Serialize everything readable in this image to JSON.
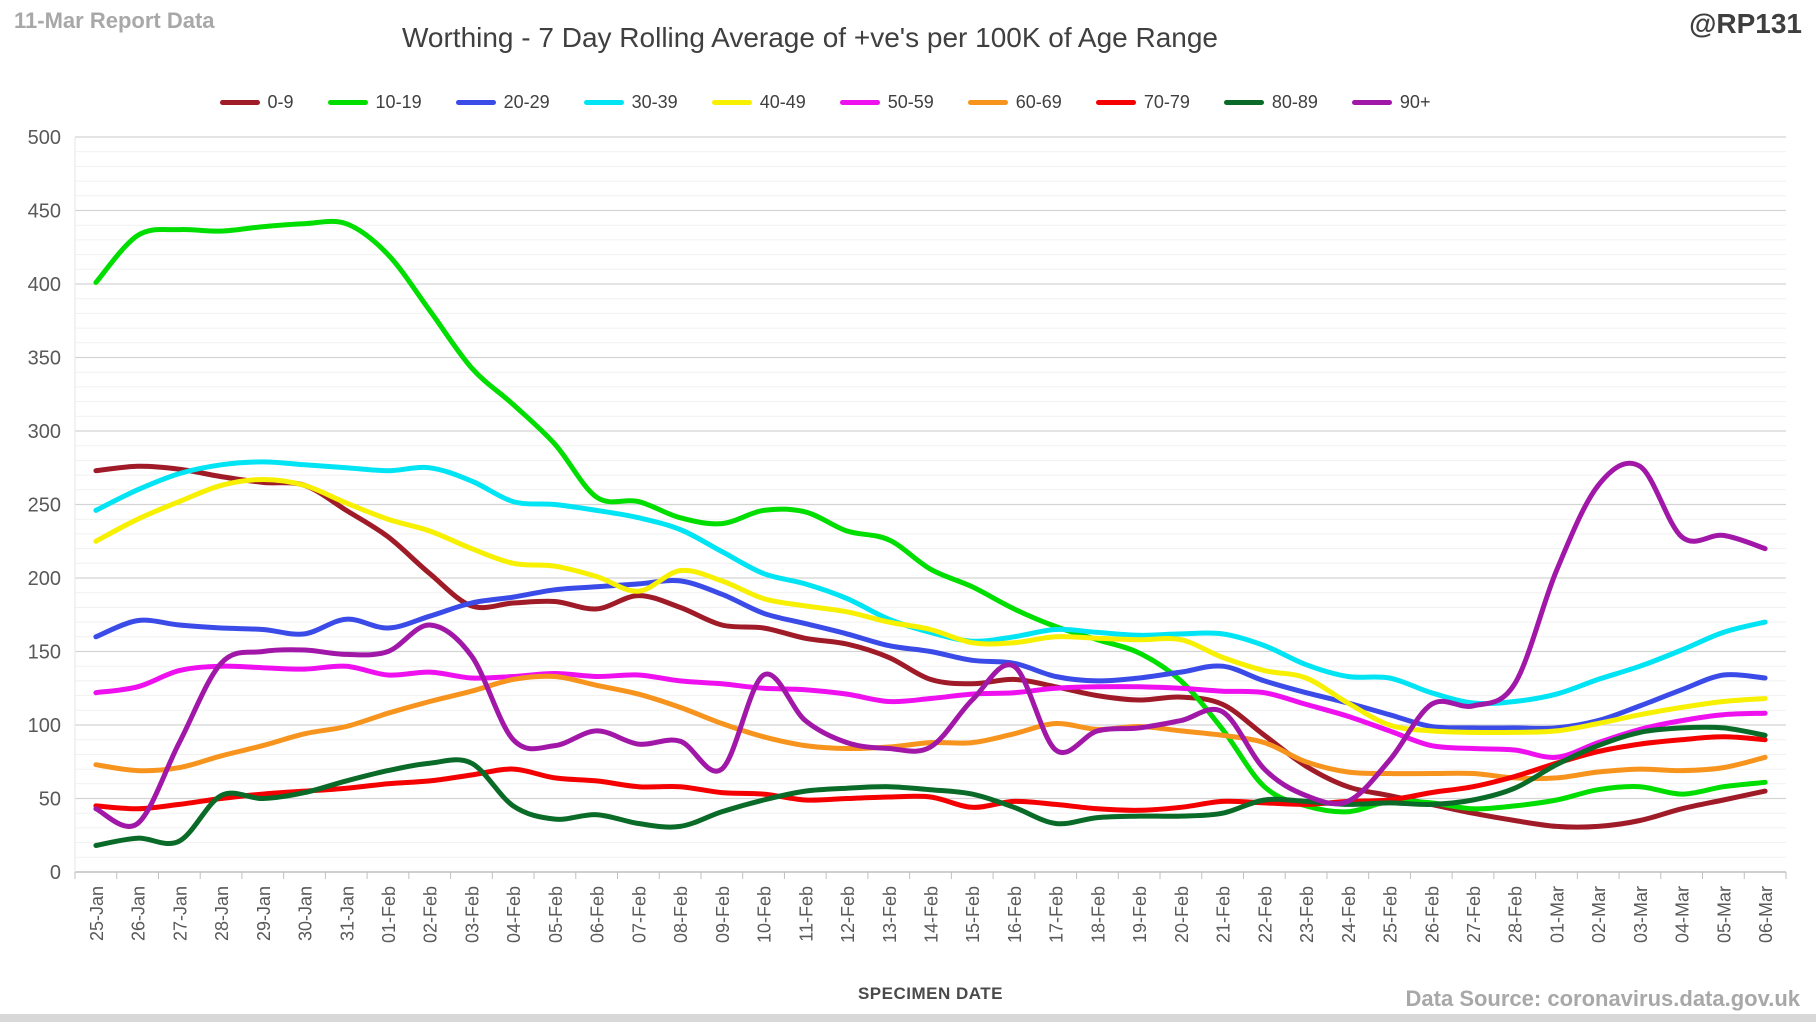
{
  "header": {
    "report_label": "11-Mar Report Data",
    "title": "Worthing - 7 Day Rolling Average of +ve's per 100K of Age Range",
    "handle": "@RP131"
  },
  "footer": {
    "xaxis_title": "SPECIMEN DATE",
    "source": "Data Source: coronavirus.data.gov.uk"
  },
  "style": {
    "background": "#ffffff",
    "major_grid": "#d4d4d4",
    "minor_grid": "#f1f1f1",
    "axis_line": "#bfbfbf",
    "tick_label": "#595959",
    "line_width": 5
  },
  "chart_data": {
    "type": "line",
    "title": "Worthing - 7 Day Rolling Average of +ve's per 100K of Age Range",
    "xlabel": "SPECIMEN DATE",
    "ylabel": "",
    "ylim": [
      0,
      500
    ],
    "ytick_step": 50,
    "minor_step": 10,
    "grid": true,
    "legend_position": "top",
    "yticks": [
      0,
      50,
      100,
      150,
      200,
      250,
      300,
      350,
      400,
      450,
      500
    ],
    "x": [
      "25-Jan",
      "26-Jan",
      "27-Jan",
      "28-Jan",
      "29-Jan",
      "30-Jan",
      "31-Jan",
      "01-Feb",
      "02-Feb",
      "03-Feb",
      "04-Feb",
      "05-Feb",
      "06-Feb",
      "07-Feb",
      "08-Feb",
      "09-Feb",
      "10-Feb",
      "11-Feb",
      "12-Feb",
      "13-Feb",
      "14-Feb",
      "15-Feb",
      "16-Feb",
      "17-Feb",
      "18-Feb",
      "19-Feb",
      "20-Feb",
      "21-Feb",
      "22-Feb",
      "23-Feb",
      "24-Feb",
      "25-Feb",
      "26-Feb",
      "27-Feb",
      "28-Feb",
      "01-Mar",
      "02-Mar",
      "03-Mar",
      "04-Mar",
      "05-Mar",
      "06-Mar"
    ],
    "series": [
      {
        "name": "0-9",
        "color": "#a01b28",
        "values": [
          273,
          276,
          274,
          269,
          265,
          263,
          246,
          228,
          203,
          181,
          183,
          184,
          179,
          188,
          180,
          168,
          166,
          159,
          155,
          146,
          131,
          128,
          131,
          126,
          120,
          117,
          119,
          114,
          93,
          72,
          58,
          52,
          46,
          40,
          35,
          31,
          31,
          35,
          43,
          49,
          55
        ]
      },
      {
        "name": "10-19",
        "color": "#00de00",
        "values": [
          401,
          433,
          437,
          436,
          439,
          441,
          441,
          420,
          382,
          343,
          318,
          291,
          255,
          252,
          241,
          237,
          246,
          245,
          232,
          226,
          206,
          194,
          179,
          167,
          158,
          149,
          130,
          97,
          58,
          45,
          41,
          48,
          47,
          43,
          45,
          49,
          56,
          58,
          53,
          58,
          61
        ]
      },
      {
        "name": "20-29",
        "color": "#3b4be8",
        "values": [
          160,
          171,
          168,
          166,
          165,
          162,
          172,
          166,
          174,
          183,
          187,
          192,
          194,
          196,
          198,
          189,
          176,
          169,
          162,
          154,
          150,
          144,
          142,
          133,
          130,
          132,
          136,
          140,
          130,
          122,
          115,
          107,
          99,
          98,
          98,
          98,
          103,
          113,
          124,
          134,
          132
        ]
      },
      {
        "name": "30-39",
        "color": "#00e4f4",
        "values": [
          246,
          260,
          271,
          277,
          279,
          277,
          275,
          273,
          275,
          266,
          252,
          250,
          246,
          241,
          233,
          218,
          203,
          196,
          186,
          172,
          163,
          157,
          160,
          165,
          163,
          161,
          162,
          162,
          154,
          141,
          133,
          132,
          122,
          115,
          116,
          121,
          131,
          140,
          151,
          163,
          170
        ]
      },
      {
        "name": "40-49",
        "color": "#f7f000",
        "values": [
          225,
          240,
          252,
          263,
          267,
          263,
          251,
          240,
          232,
          220,
          210,
          208,
          201,
          191,
          205,
          198,
          186,
          181,
          177,
          170,
          165,
          156,
          156,
          160,
          159,
          158,
          158,
          146,
          137,
          132,
          115,
          100,
          96,
          95,
          95,
          96,
          101,
          107,
          112,
          116,
          118
        ]
      },
      {
        "name": "50-59",
        "color": "#ee10ee",
        "values": [
          122,
          126,
          137,
          140,
          139,
          138,
          140,
          134,
          136,
          132,
          133,
          135,
          133,
          134,
          130,
          128,
          125,
          124,
          121,
          116,
          118,
          121,
          122,
          125,
          126,
          126,
          125,
          123,
          122,
          114,
          106,
          96,
          86,
          84,
          83,
          78,
          88,
          97,
          103,
          107,
          108
        ]
      },
      {
        "name": "60-69",
        "color": "#f7941e",
        "values": [
          73,
          69,
          71,
          79,
          86,
          94,
          99,
          108,
          116,
          123,
          131,
          133,
          127,
          121,
          112,
          101,
          92,
          86,
          84,
          85,
          88,
          88,
          94,
          101,
          97,
          99,
          96,
          93,
          88,
          75,
          68,
          67,
          67,
          67,
          64,
          64,
          68,
          70,
          69,
          71,
          78
        ]
      },
      {
        "name": "70-79",
        "color": "#f40000",
        "values": [
          45,
          43,
          46,
          50,
          53,
          55,
          57,
          60,
          62,
          66,
          70,
          64,
          62,
          58,
          58,
          54,
          53,
          49,
          50,
          51,
          51,
          44,
          48,
          46,
          43,
          42,
          44,
          48,
          47,
          46,
          48,
          49,
          54,
          58,
          65,
          74,
          82,
          87,
          90,
          92,
          90
        ]
      },
      {
        "name": "80-89",
        "color": "#0a6b28",
        "values": [
          18,
          23,
          21,
          52,
          50,
          54,
          62,
          69,
          74,
          74,
          45,
          36,
          39,
          33,
          31,
          41,
          49,
          55,
          57,
          58,
          56,
          53,
          44,
          33,
          37,
          38,
          38,
          40,
          49,
          48,
          46,
          47,
          46,
          49,
          57,
          73,
          86,
          95,
          98,
          98,
          93
        ]
      },
      {
        "name": "90+",
        "color": "#a118a8",
        "values": [
          43,
          33,
          88,
          142,
          150,
          151,
          148,
          150,
          168,
          147,
          90,
          86,
          96,
          87,
          89,
          70,
          134,
          103,
          88,
          84,
          85,
          117,
          140,
          83,
          96,
          98,
          103,
          109,
          70,
          52,
          48,
          76,
          114,
          113,
          128,
          205,
          263,
          276,
          228,
          229,
          220
        ]
      }
    ]
  }
}
